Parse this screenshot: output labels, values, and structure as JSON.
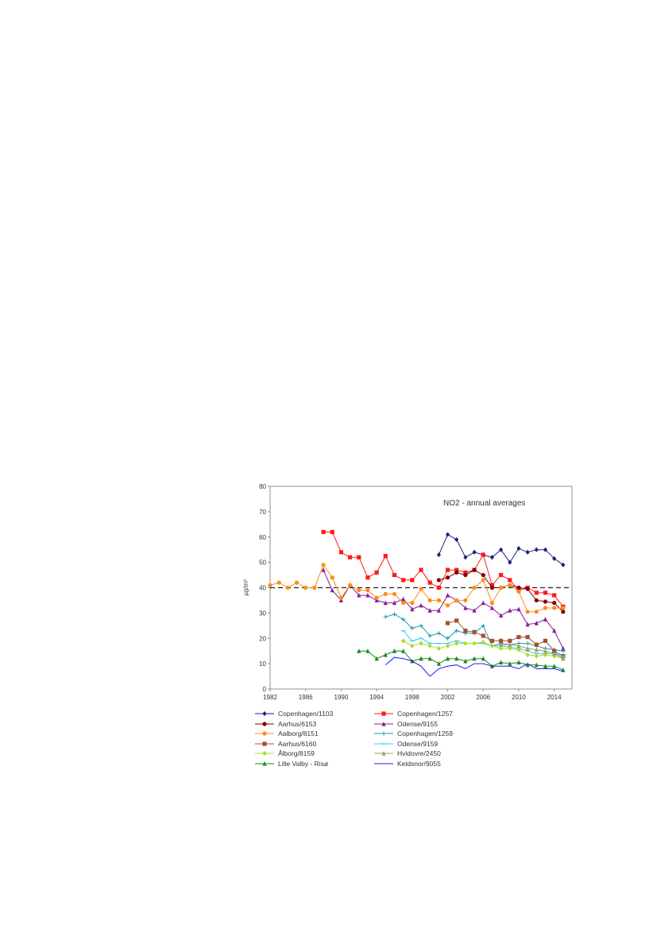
{
  "chart_data": {
    "type": "line",
    "title": "NO2 - annual averages",
    "ylabel": "µg/m³",
    "xlabel": "",
    "xlim": [
      1982,
      2016
    ],
    "ylim": [
      0,
      80
    ],
    "x_ticks": [
      "1982",
      "1986",
      "1990",
      "1994",
      "1998",
      "2002",
      "2006",
      "2010",
      "2014"
    ],
    "y_ticks": [
      "0",
      "10",
      "20",
      "30",
      "40",
      "50",
      "60",
      "70",
      "80"
    ],
    "limit_value": 40,
    "grid": false,
    "legend_position": "bottom",
    "series": [
      {
        "name": "Copenhagen/1103",
        "color": "#1a237e",
        "marker": "diamond",
        "x": [
          2001,
          2002,
          2003,
          2004,
          2005,
          2006,
          2007,
          2008,
          2009,
          2010,
          2011,
          2012,
          2013,
          2014,
          2015
        ],
        "y": [
          53,
          61,
          59,
          52,
          54,
          53,
          52,
          55,
          50,
          55.5,
          54,
          55,
          55,
          51.5,
          49
        ]
      },
      {
        "name": "Copenhagen/1257",
        "color": "#ff1a1a",
        "marker": "square",
        "x": [
          1988,
          1989,
          1990,
          1991,
          1992,
          1993,
          1994,
          1995,
          1996,
          1997,
          1998,
          1999,
          2000,
          2001,
          2002,
          2003,
          2004,
          2005,
          2006,
          2007,
          2008,
          2009,
          2010,
          2011,
          2012,
          2013,
          2014,
          2015
        ],
        "y": [
          62,
          62,
          54,
          52,
          52,
          44,
          46,
          52.5,
          45,
          43,
          43,
          47,
          42,
          40,
          47,
          47,
          46,
          47,
          53,
          41,
          45,
          43,
          39,
          40,
          38,
          38,
          37,
          32.5
        ]
      },
      {
        "name": "Aarhus/6153",
        "color": "#800000",
        "marker": "circle",
        "x": [
          2001,
          2002,
          2003,
          2004,
          2005,
          2006,
          2007,
          2008,
          2009,
          2010,
          2011,
          2012,
          2013,
          2014,
          2015
        ],
        "y": [
          43,
          44,
          46,
          45,
          47,
          45,
          40,
          40,
          41,
          40,
          39.5,
          35,
          34.5,
          34,
          30.5
        ]
      },
      {
        "name": "Odense/9155",
        "color": "#8b1a9b",
        "marker": "triangle",
        "x": [
          1988,
          1989,
          1990,
          1991,
          1992,
          1993,
          1994,
          1995,
          1996,
          1997,
          1998,
          1999,
          2000,
          2001,
          2002,
          2003,
          2004,
          2005,
          2006,
          2007,
          2008,
          2009,
          2010,
          2011,
          2012,
          2013,
          2014,
          2015
        ],
        "y": [
          47,
          39,
          35,
          41,
          37,
          37,
          35,
          34,
          34,
          35.5,
          31.5,
          33,
          31,
          31,
          37,
          35,
          32,
          31,
          34,
          32,
          29,
          31,
          31.5,
          25.5,
          26,
          27.5,
          23,
          16
        ]
      },
      {
        "name": "Aalborg/8151",
        "color": "#ff8c1a",
        "marker": "circle",
        "x": [
          1982,
          1983,
          1984,
          1985,
          1986,
          1987,
          1988,
          1989,
          1990,
          1991,
          1992,
          1993,
          1994,
          1995,
          1996,
          1997,
          1998,
          1999,
          2000,
          2001,
          2002,
          2003,
          2004,
          2005,
          2006,
          2007,
          2008,
          2009,
          2010,
          2011,
          2012,
          2013,
          2014,
          2015
        ],
        "y": [
          41,
          42,
          40,
          42,
          40,
          40,
          49,
          44,
          36,
          41,
          39,
          39,
          36,
          37.5,
          37.5,
          34,
          34,
          39.5,
          35,
          35,
          33,
          35,
          35,
          40,
          43,
          34,
          40,
          41,
          38.5,
          30.5,
          30.5,
          32,
          32,
          32
        ]
      },
      {
        "name": "Copenhagen/1259",
        "color": "#1a9aaa",
        "marker": "plus",
        "x": [
          1995,
          1996,
          1997,
          1998,
          1999,
          2000,
          2001,
          2002,
          2003,
          2004,
          2005,
          2006,
          2007,
          2008,
          2009,
          2010,
          2011,
          2012,
          2013,
          2014,
          2015
        ],
        "y": [
          28.5,
          29.5,
          27.5,
          24,
          25,
          21,
          22,
          20,
          23,
          22,
          22,
          25,
          17,
          18,
          17.5,
          18,
          18,
          17,
          16,
          15.5,
          15
        ]
      },
      {
        "name": "Aarhus/6160",
        "color": "#a0522d",
        "marker": "square",
        "x": [
          2002,
          2003,
          2004,
          2005,
          2006,
          2007,
          2008,
          2009,
          2010,
          2011,
          2012,
          2013,
          2014,
          2015
        ],
        "y": [
          26,
          27,
          23,
          22.5,
          21,
          19,
          19,
          19,
          20.5,
          20.5,
          17.5,
          19,
          15,
          13
        ]
      },
      {
        "name": "Odense/9159",
        "color": "#33ccff",
        "marker": "dash",
        "x": [
          1997,
          1998,
          1999,
          2000,
          2001,
          2002,
          2003,
          2004,
          2005,
          2006,
          2007,
          2008,
          2009,
          2010,
          2011,
          2012,
          2013,
          2014,
          2015
        ],
        "y": [
          23,
          19,
          20,
          18,
          18,
          18,
          19,
          18,
          18,
          18,
          17,
          17,
          16.5,
          16,
          15,
          14,
          14,
          14,
          13
        ]
      },
      {
        "name": "Ålborg/8159",
        "color": "#aadd22",
        "marker": "diamond",
        "x": [
          1997,
          1998,
          1999,
          2000,
          2001,
          2002,
          2003,
          2004,
          2005,
          2006,
          2007,
          2008,
          2009,
          2010,
          2011,
          2012,
          2013,
          2014,
          2015
        ],
        "y": [
          19,
          17,
          18,
          17,
          16,
          17,
          18,
          18,
          18,
          18.5,
          17,
          16,
          16,
          15.5,
          13.5,
          13,
          13.5,
          13,
          12
        ]
      },
      {
        "name": "Hvidovre/2450",
        "color": "#a89a6a",
        "marker": "triangle",
        "x": [
          2008,
          2009,
          2010,
          2011,
          2012,
          2013,
          2014,
          2015
        ],
        "y": [
          17.5,
          17.5,
          17,
          16,
          15.5,
          15,
          14,
          12
        ]
      },
      {
        "name": "Lille Valby - Risø",
        "color": "#1a8a1a",
        "marker": "triangle",
        "x": [
          1992,
          1993,
          1994,
          1995,
          1996,
          1997,
          1998,
          1999,
          2000,
          2001,
          2002,
          2003,
          2004,
          2005,
          2006,
          2007,
          2008,
          2009,
          2010,
          2011,
          2012,
          2013,
          2014,
          2015
        ],
        "y": [
          15,
          15,
          12,
          13.5,
          15,
          15,
          11,
          12,
          12,
          10,
          12,
          12,
          11,
          12,
          12,
          9,
          10.5,
          10,
          10.5,
          9.5,
          9.5,
          9,
          9,
          7.5
        ]
      },
      {
        "name": "Keldsnor/9055",
        "color": "#1a1aff",
        "marker": "none",
        "x": [
          1995,
          1996,
          1997,
          1998,
          1999,
          2000,
          2001,
          2002,
          2003,
          2004,
          2005,
          2006,
          2007,
          2008,
          2009,
          2010,
          2011,
          2012,
          2013,
          2014,
          2015
        ],
        "y": [
          9.5,
          12.5,
          12,
          11,
          9,
          5,
          8,
          9,
          9.5,
          8,
          10,
          10,
          9,
          9,
          9,
          8,
          10,
          8,
          8,
          8,
          7
        ]
      }
    ]
  }
}
